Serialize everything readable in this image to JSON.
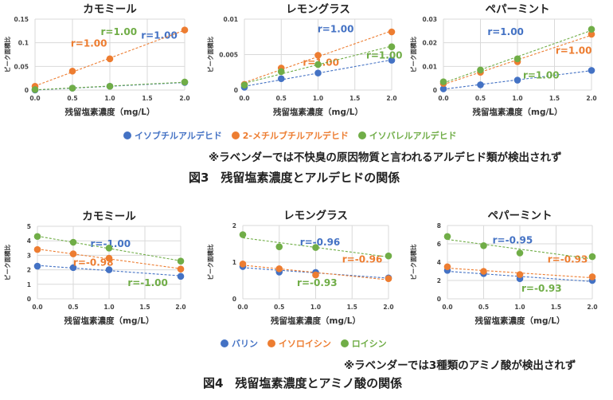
{
  "colors": {
    "blue": "#4472c4",
    "orange": "#ed7d31",
    "green": "#70ad47"
  },
  "figure3": {
    "legend": [
      {
        "label": "イソブチルアルデヒド",
        "color": "#4472c4"
      },
      {
        "label": "2-メチルブチルアルデヒド",
        "color": "#ed7d31"
      },
      {
        "label": "イソバレルアルデヒド",
        "color": "#70ad47"
      }
    ],
    "note": "※ラベンダーでは不快臭の原因物質と言われるアルデヒド類が検出されず",
    "caption": "図3　残留塩素濃度とアルデヒドの関係"
  },
  "figure4": {
    "legend": [
      {
        "label": "バリン",
        "color": "#4472c4"
      },
      {
        "label": "イソロイシン",
        "color": "#ed7d31"
      },
      {
        "label": "ロイシン",
        "color": "#70ad47"
      }
    ],
    "note": "※ラベンダーでは3種類のアミノ酸が検出されず",
    "caption": "図4　残留塩素濃度とアミノ酸の関係"
  },
  "chart_data": [
    {
      "id": "fig3-chamomile",
      "type": "scatter",
      "title": "カモミール",
      "xlabel": "残留塩素濃度（mg/L）",
      "ylabel": "ピーク面積比",
      "x": [
        0,
        0.5,
        1.0,
        2.0
      ],
      "xlim": [
        0,
        2.0
      ],
      "xticks": [
        "0.0",
        "0.5",
        "1.0",
        "1.5",
        "2.0"
      ],
      "ylim": [
        0,
        0.15
      ],
      "yticks": [
        "0",
        "0.05",
        "0.1",
        "0.15"
      ],
      "grid": true,
      "trendline": "linear",
      "series": [
        {
          "name": "イソブチルアルデヒド",
          "color": "#4472c4",
          "values": [
            0.0,
            0.004,
            0.008,
            0.016
          ],
          "annotation": "r=1.00"
        },
        {
          "name": "2-メチルブチルアルデヒド",
          "color": "#ed7d31",
          "values": [
            0.008,
            0.04,
            0.066,
            0.127
          ],
          "annotation": "r=1.00"
        },
        {
          "name": "イソバレルアルデヒド",
          "color": "#70ad47",
          "values": [
            0.001,
            0.004,
            0.008,
            0.017
          ],
          "annotation": "r=1.00"
        }
      ]
    },
    {
      "id": "fig3-lemongrass",
      "type": "scatter",
      "title": "レモングラス",
      "xlabel": "残留塩素濃度（mg/L）",
      "ylabel": "ピーク面積比",
      "x": [
        0,
        0.5,
        1.0,
        2.0
      ],
      "xlim": [
        0,
        2.0
      ],
      "xticks": [
        "0.0",
        "0.5",
        "1.0",
        "1.5",
        "2.0"
      ],
      "ylim": [
        0,
        0.01
      ],
      "yticks": [
        "0",
        "0.005",
        "0.01"
      ],
      "grid": true,
      "trendline": "linear",
      "series": [
        {
          "name": "イソブチルアルデヒド",
          "color": "#4472c4",
          "values": [
            0.0004,
            0.0016,
            0.0024,
            0.0042
          ],
          "annotation": "r=1.00"
        },
        {
          "name": "2-メチルブチルアルデヒド",
          "color": "#ed7d31",
          "values": [
            0.0008,
            0.0031,
            0.0049,
            0.0082
          ],
          "annotation": "r=1.00"
        },
        {
          "name": "イソバレルアルデヒド",
          "color": "#70ad47",
          "values": [
            0.0007,
            0.0026,
            0.0036,
            0.0061
          ],
          "annotation": "r=1.00"
        }
      ]
    },
    {
      "id": "fig3-peppermint",
      "type": "scatter",
      "title": "ペパーミント",
      "xlabel": "残留塩素濃度（mg/L）",
      "ylabel": "ピーク面積比",
      "x": [
        0,
        0.5,
        1.0,
        2.0
      ],
      "xlim": [
        0,
        2.0
      ],
      "xticks": [
        "0.0",
        "0.5",
        "1.0",
        "1.5",
        "2.0"
      ],
      "ylim": [
        0,
        0.03
      ],
      "yticks": [
        "0",
        "0.01",
        "0.02",
        "0.03"
      ],
      "grid": true,
      "trendline": "linear",
      "series": [
        {
          "name": "イソブチルアルデヒド",
          "color": "#4472c4",
          "values": [
            0.0005,
            0.0022,
            0.0042,
            0.0083
          ],
          "annotation": "r=1.00"
        },
        {
          "name": "2-メチルブチルアルデヒド",
          "color": "#ed7d31",
          "values": [
            0.0028,
            0.0075,
            0.012,
            0.0236
          ],
          "annotation": "r=1.00"
        },
        {
          "name": "イソバレルアルデヒド",
          "color": "#70ad47",
          "values": [
            0.0035,
            0.0085,
            0.0132,
            0.0257
          ],
          "annotation": "r=1.00"
        }
      ]
    },
    {
      "id": "fig4-chamomile",
      "type": "scatter",
      "title": "カモミール",
      "xlabel": "残留塩素濃度（mg/L）",
      "ylabel": "ピーク面積比",
      "x": [
        0,
        0.5,
        1.0,
        2.0
      ],
      "xlim": [
        0,
        2.0
      ],
      "xticks": [
        "0.0",
        "0.5",
        "1.0",
        "1.5",
        "2.0"
      ],
      "ylim": [
        0,
        5
      ],
      "yticks": [
        "0",
        "1",
        "2",
        "3",
        "4",
        "5"
      ],
      "grid": true,
      "trendline": "linear",
      "series": [
        {
          "name": "バリン",
          "color": "#4472c4",
          "values": [
            2.25,
            2.15,
            2.0,
            1.55
          ],
          "annotation": "r=-1.00"
        },
        {
          "name": "イソロイシン",
          "color": "#ed7d31",
          "values": [
            3.4,
            3.1,
            2.8,
            2.05
          ],
          "annotation": "r=-0.98"
        },
        {
          "name": "ロイシン",
          "color": "#70ad47",
          "values": [
            4.3,
            3.9,
            3.5,
            2.6
          ],
          "annotation": "r=-1.00"
        }
      ]
    },
    {
      "id": "fig4-lemongrass",
      "type": "scatter",
      "title": "レモングラス",
      "xlabel": "残留塩素濃度（mg/L）",
      "ylabel": "ピーク面積比",
      "x": [
        0,
        0.5,
        1.0,
        2.0
      ],
      "xlim": [
        0,
        2.0
      ],
      "xticks": [
        "0.0",
        "0.5",
        "1.0",
        "1.5",
        "2.0"
      ],
      "ylim": [
        0,
        2
      ],
      "yticks": [
        "0",
        "1",
        "2"
      ],
      "grid": true,
      "trendline": "linear",
      "series": [
        {
          "name": "バリン",
          "color": "#4472c4",
          "values": [
            0.88,
            0.73,
            0.72,
            0.57
          ],
          "annotation": "r=-0.96"
        },
        {
          "name": "イソロイシン",
          "color": "#ed7d31",
          "values": [
            0.95,
            0.82,
            0.65,
            0.55
          ],
          "annotation": "r=-0.96"
        },
        {
          "name": "ロイシン",
          "color": "#70ad47",
          "values": [
            1.75,
            1.42,
            1.4,
            1.17
          ],
          "annotation": "r=-0.93"
        }
      ]
    },
    {
      "id": "fig4-peppermint",
      "type": "scatter",
      "title": "ペパーミント",
      "xlabel": "残留塩素濃度（mg/L）",
      "ylabel": "ピーク面積比",
      "x": [
        0,
        0.5,
        1.0,
        2.0
      ],
      "xlim": [
        0,
        2.0
      ],
      "xticks": [
        "0.0",
        "0.5",
        "1.0",
        "1.5",
        "2.0"
      ],
      "ylim": [
        0,
        8
      ],
      "yticks": [
        "0",
        "2",
        "4",
        "6",
        "8"
      ],
      "grid": true,
      "trendline": "linear",
      "series": [
        {
          "name": "バリン",
          "color": "#4472c4",
          "values": [
            3.1,
            2.75,
            2.2,
            2.0
          ],
          "annotation": "r=-0.95"
        },
        {
          "name": "イソロイシン",
          "color": "#ed7d31",
          "values": [
            3.5,
            3.0,
            2.65,
            2.4
          ],
          "annotation": "r=-0.93"
        },
        {
          "name": "ロイシン",
          "color": "#70ad47",
          "values": [
            6.8,
            5.8,
            5.0,
            4.6
          ],
          "annotation": "r=-0.93"
        }
      ]
    }
  ]
}
